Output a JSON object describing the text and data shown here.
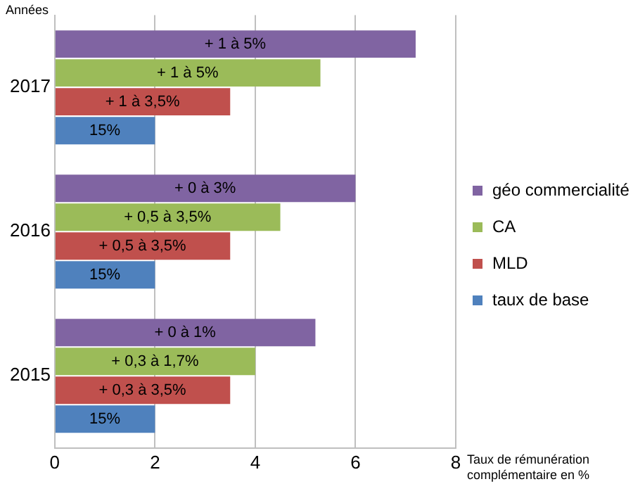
{
  "chart_data": {
    "type": "bar",
    "orientation": "horizontal",
    "ylabel": "Années",
    "xlabel": "Taux de rémunération complémentaire en %",
    "categories": [
      "2017",
      "2016",
      "2015"
    ],
    "series": [
      {
        "name": "géo commercialité",
        "color": "#8064a2",
        "values": [
          7.2,
          6,
          5.2
        ]
      },
      {
        "name": "CA",
        "color": "#9bbb59",
        "values": [
          5.3,
          4.5,
          4
        ]
      },
      {
        "name": "MLD",
        "color": "#c0504d",
        "values": [
          3.5,
          3.5,
          3.5
        ]
      },
      {
        "name": "taux de base",
        "color": "#4f81bd",
        "values": [
          2,
          2,
          2
        ]
      }
    ],
    "annotations": [
      {
        "text": "+ 1 à 5%",
        "x": 3.6,
        "y": "2017"
      },
      {
        "text": "+ 1 à 5%",
        "x": 2.65,
        "y": "2017"
      },
      {
        "text": "+ 1 à 3,5%",
        "x": 1.75,
        "y": "2017"
      },
      {
        "text": "15%",
        "x": 1,
        "y": "2017"
      },
      {
        "text": "+ 0 à 3%",
        "x": 3,
        "y": "2016"
      },
      {
        "text": "+ 0,5 à 3,5%",
        "x": 2.25,
        "y": "2016"
      },
      {
        "text": "+ 0,5 à 3,5%",
        "x": 1.75,
        "y": "2016"
      },
      {
        "text": "15%",
        "x": 1,
        "y": "2016"
      },
      {
        "text": "+ 0 à 1%",
        "x": 2.6,
        "y": "2015"
      },
      {
        "text": "+ 0,3 à 1,7%",
        "x": 2,
        "y": "2015"
      },
      {
        "text": "+ 0,3 à 3,5%",
        "x": 1.75,
        "y": "2015"
      },
      {
        "text": "15%",
        "x": 1,
        "y": "2015"
      }
    ],
    "xlim": [
      0,
      8
    ],
    "xticks": [
      0,
      2,
      4,
      6,
      8
    ],
    "grid": "x",
    "legend": "right"
  }
}
